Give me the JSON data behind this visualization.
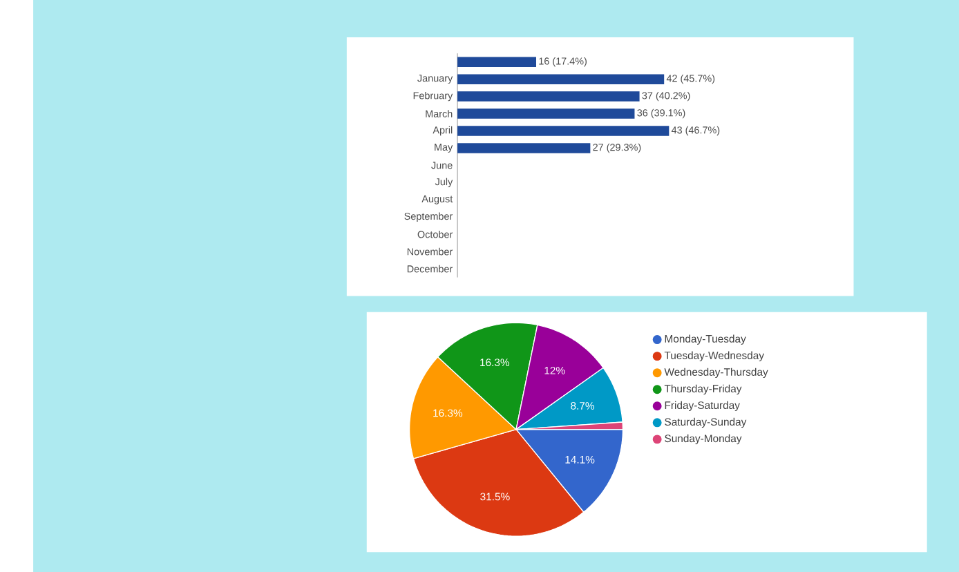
{
  "chart_data": [
    {
      "type": "bar",
      "orientation": "horizontal",
      "categories": [
        null,
        "January",
        "February",
        "March",
        "April",
        "May",
        "June",
        "July",
        "August",
        "September",
        "October",
        "November",
        "December"
      ],
      "values": [
        16,
        42,
        37,
        36,
        43,
        27,
        null,
        null,
        null,
        null,
        null,
        null,
        null
      ],
      "value_labels": [
        "16 (17.4%)",
        "42 (45.7%)",
        "37 (40.2%)",
        "36 (39.1%)",
        "43 (46.7%)",
        "27 (29.3%)",
        null,
        null,
        null,
        null,
        null,
        null,
        null
      ],
      "color": "#1f4a9a"
    },
    {
      "type": "pie",
      "categories": [
        "Monday-Tuesday",
        "Tuesday-Wednesday",
        "Wednesday-Thursday",
        "Thursday-Friday",
        "Friday-Saturday",
        "Saturday-Sunday",
        "Sunday-Monday"
      ],
      "values": [
        14.1,
        31.5,
        16.3,
        16.3,
        12,
        8.7,
        1.1
      ],
      "value_labels": [
        "14.1%",
        "31.5%",
        "16.3%",
        "16.3%",
        "12%",
        "8.7%",
        null
      ],
      "colors": [
        "#3366cc",
        "#dc3912",
        "#ff9900",
        "#109618",
        "#990099",
        "#0099c6",
        "#dd4477"
      ],
      "legend": "right"
    }
  ]
}
